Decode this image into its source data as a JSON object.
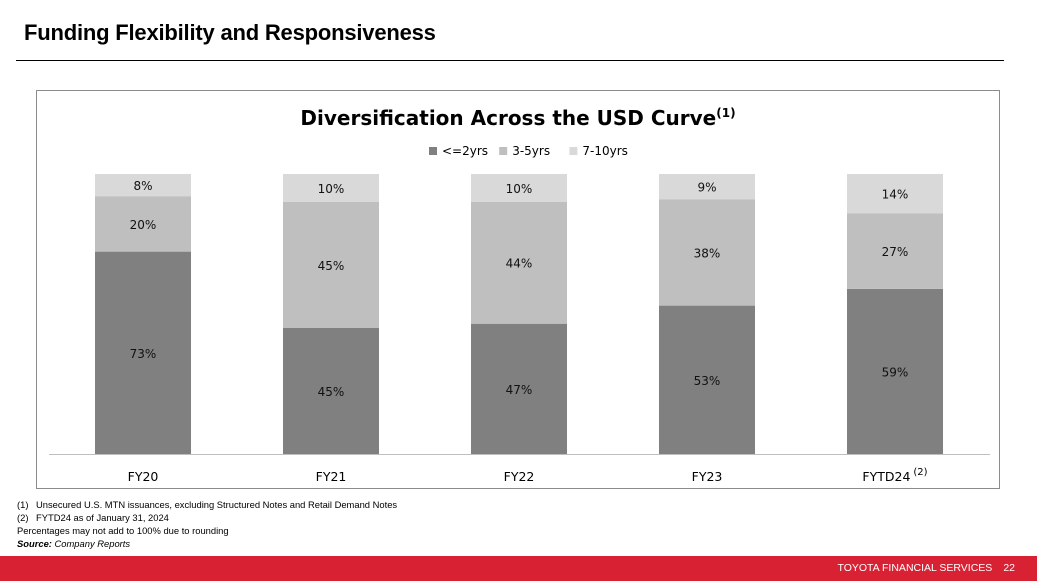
{
  "header": {
    "title": "Funding Flexibility and Responsiveness"
  },
  "chart_data": {
    "type": "bar",
    "stacked": true,
    "title": "Diversification Across the USD Curve",
    "title_superscript": "(1)",
    "xlabel": "",
    "ylabel": "",
    "ylim": [
      0,
      100
    ],
    "grid": false,
    "legend_position": "top-center",
    "categories": [
      "FY20",
      "FY21",
      "FY22",
      "FY23",
      "FYTD24"
    ],
    "category_superscripts": [
      "",
      "",
      "",
      "",
      "(2)"
    ],
    "series": [
      {
        "name": "<=2yrs",
        "color": "#808080",
        "values": [
          73,
          45,
          47,
          53,
          59
        ],
        "labels": [
          "73%",
          "45%",
          "47%",
          "53%",
          "59%"
        ]
      },
      {
        "name": "3-5yrs",
        "color": "#bfbfbf",
        "values": [
          20,
          45,
          44,
          38,
          27
        ],
        "labels": [
          "20%",
          "45%",
          "44%",
          "38%",
          "27%"
        ]
      },
      {
        "name": "7-10yrs",
        "color": "#d9d9d9",
        "values": [
          8,
          10,
          10,
          9,
          14
        ],
        "labels": [
          "8%",
          "10%",
          "10%",
          "9%",
          "14%"
        ]
      }
    ]
  },
  "footnotes": {
    "items": [
      {
        "num": "(1)",
        "text": "Unsecured U.S. MTN issuances, excluding Structured Notes and Retail Demand Notes"
      },
      {
        "num": "(2)",
        "text": "FYTD24 as of January 31, 2024"
      }
    ],
    "rounding_note": "Percentages may not add to 100% due to rounding",
    "source_label": "Source:",
    "source_text": "Company Reports"
  },
  "footer": {
    "company": "TOYOTA FINANCIAL SERVICES",
    "page_number": "22",
    "color": "#d82234"
  }
}
